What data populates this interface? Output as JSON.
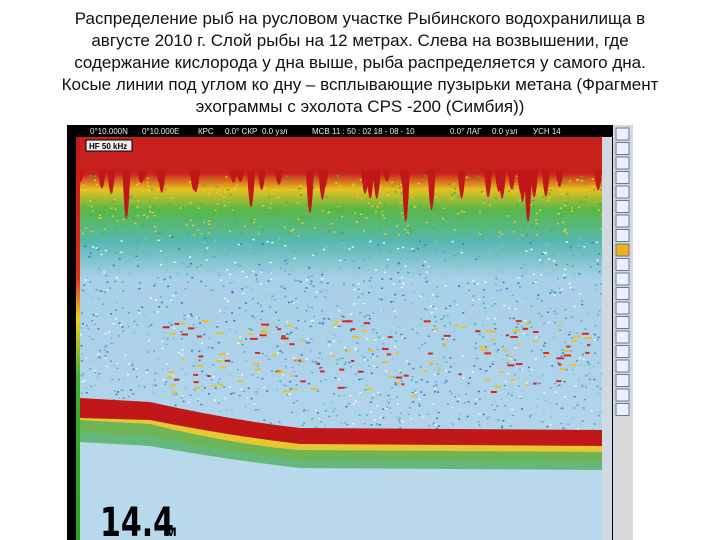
{
  "title_lines": [
    "Распределение рыб на русловом участке Рыбинского водохранилища в",
    "августе 2010 г. Слой рыбы на 12 метрах. Слева на возвышении, где",
    "содержание кислорода у дна выше, рыба распределяется у самого дна.",
    "Косые линии под углом ко дну – всплывающие пузырьки метана (Фрагмент",
    "эхограммы с эхолота CPS -200 (Симбия))"
  ],
  "status_bar": [
    "0°10.000N",
    "0°10.000E",
    "КРС",
    "0.0° СКР",
    "0.0 узл",
    "МСВ 11 : 50 : 02 18 - 08 - 10",
    "0.0° ЛАГ",
    "0.0 узл",
    "УСН 14"
  ],
  "frequency_label": "HF 50 kHz",
  "depth_value": "14.4",
  "depth_unit": "м"
}
